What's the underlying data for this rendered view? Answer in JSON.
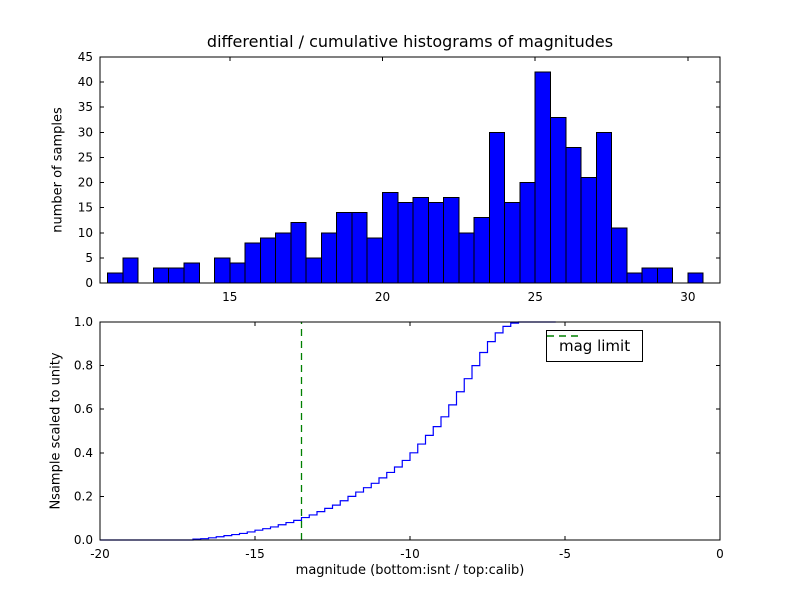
{
  "figure": {
    "background": "#ffffff"
  },
  "chart_data": [
    {
      "type": "bar",
      "title": "differential / cumulative histograms of magnitudes",
      "ylabel": "number of samples",
      "bar_color": "#0000ff",
      "bar_edge_color": "#000000",
      "bin_start": 11.0,
      "bin_width": 0.5,
      "values": [
        2,
        5,
        0,
        3,
        3,
        4,
        0,
        5,
        4,
        8,
        9,
        10,
        12,
        5,
        10,
        14,
        14,
        9,
        18,
        16,
        17,
        16,
        17,
        10,
        13,
        30,
        16,
        20,
        42,
        33,
        27,
        21,
        30,
        11,
        2,
        3,
        3,
        0,
        2
      ],
      "xlim": [
        10.75,
        31.05
      ],
      "ylim": [
        0,
        45
      ],
      "xticks": [
        15,
        20,
        25,
        30
      ],
      "xtick_labels": [
        "15",
        "20",
        "25",
        "30"
      ],
      "yticks": [
        0,
        5,
        10,
        15,
        20,
        25,
        30,
        35,
        40,
        45
      ],
      "ytick_labels": [
        "0",
        "5",
        "10",
        "15",
        "20",
        "25",
        "30",
        "35",
        "40",
        "45"
      ],
      "grid": false,
      "legend": null
    },
    {
      "type": "line",
      "subtype": "cumulative-step",
      "ylabel": "Nsample scaled to unity",
      "xlabel": "magnitude (bottom:isnt / top:calib)",
      "line_color": "#0000ff",
      "points": [
        [
          -20,
          0
        ],
        [
          -17.25,
          0
        ],
        [
          -17,
          0.004
        ],
        [
          -16.75,
          0.006
        ],
        [
          -16.5,
          0.01
        ],
        [
          -16.25,
          0.015
        ],
        [
          -16,
          0.02
        ],
        [
          -15.75,
          0.025
        ],
        [
          -15.5,
          0.03
        ],
        [
          -15.25,
          0.037
        ],
        [
          -15,
          0.045
        ],
        [
          -14.75,
          0.052
        ],
        [
          -14.5,
          0.06
        ],
        [
          -14.25,
          0.07
        ],
        [
          -14,
          0.08
        ],
        [
          -13.75,
          0.09
        ],
        [
          -13.5,
          0.103
        ],
        [
          -13.25,
          0.115
        ],
        [
          -13,
          0.13
        ],
        [
          -12.75,
          0.145
        ],
        [
          -12.5,
          0.16
        ],
        [
          -12.25,
          0.18
        ],
        [
          -12,
          0.2
        ],
        [
          -11.75,
          0.22
        ],
        [
          -11.5,
          0.24
        ],
        [
          -11.25,
          0.26
        ],
        [
          -11,
          0.285
        ],
        [
          -10.75,
          0.31
        ],
        [
          -10.5,
          0.335
        ],
        [
          -10.25,
          0.365
        ],
        [
          -10,
          0.4
        ],
        [
          -9.75,
          0.44
        ],
        [
          -9.5,
          0.48
        ],
        [
          -9.25,
          0.52
        ],
        [
          -9,
          0.565
        ],
        [
          -8.75,
          0.62
        ],
        [
          -8.5,
          0.68
        ],
        [
          -8.25,
          0.74
        ],
        [
          -8,
          0.8
        ],
        [
          -7.75,
          0.86
        ],
        [
          -7.5,
          0.91
        ],
        [
          -7.25,
          0.95
        ],
        [
          -7,
          0.98
        ],
        [
          -6.75,
          0.995
        ],
        [
          -6.5,
          1.0
        ],
        [
          -5.3,
          1.0
        ]
      ],
      "vline": {
        "x": -13.5,
        "color": "#008000",
        "style": "dashed",
        "label": "mag limit"
      },
      "legend": {
        "label": "mag limit",
        "position": "upper right"
      },
      "xlim": [
        -20,
        0
      ],
      "ylim": [
        0,
        1
      ],
      "xticks": [
        -20,
        -15,
        -10,
        -5,
        0
      ],
      "xtick_labels": [
        "-20",
        "-15",
        "-10",
        "-5",
        "0"
      ],
      "yticks": [
        0,
        0.2,
        0.4,
        0.6,
        0.8,
        1.0
      ],
      "ytick_labels": [
        "0.0",
        "0.2",
        "0.4",
        "0.6",
        "0.8",
        "1.0"
      ],
      "grid": false
    }
  ]
}
